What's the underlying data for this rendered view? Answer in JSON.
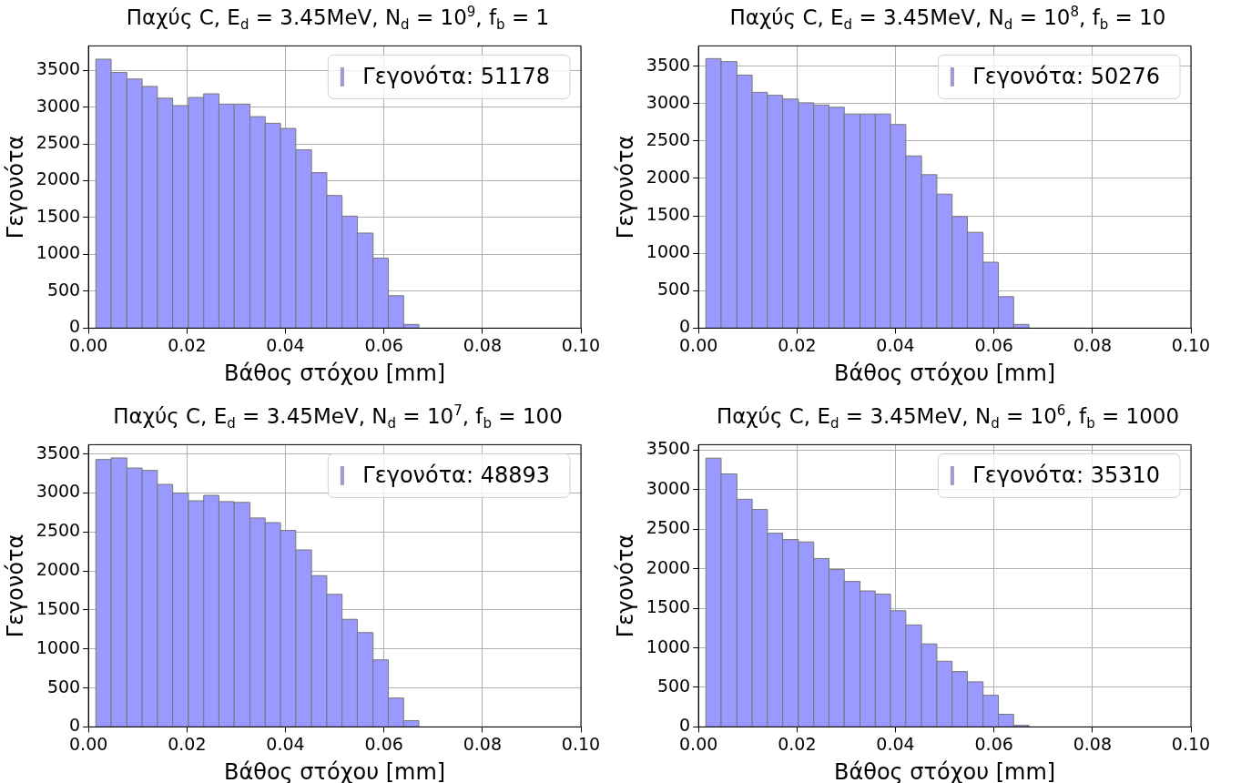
{
  "chart_data": [
    {
      "type": "histogram",
      "title": "Παχύς C, E$_{d}$ = 3.45MeV, N$_{d}$ = 10$^{9}$, f$_{b}$ = 1",
      "xlabel": "Βάθος στόχου [mm]",
      "ylabel": "Γεγονότα",
      "bins": [
        0.0015,
        0.0046,
        0.0078,
        0.0109,
        0.014,
        0.0171,
        0.0203,
        0.0234,
        0.0265,
        0.0296,
        0.0328,
        0.0359,
        0.039,
        0.0421,
        0.0453,
        0.0484,
        0.0515,
        0.0546,
        0.0578,
        0.0609,
        0.064,
        0.0671
      ],
      "series": [
        {
          "name": "Γεγονότα: 51178",
          "color": "#9999ff",
          "values": [
            3650,
            3470,
            3380,
            3280,
            3120,
            3020,
            3130,
            3180,
            3040,
            3040,
            2870,
            2780,
            2710,
            2420,
            2110,
            1800,
            1520,
            1290,
            950,
            440,
            50
          ]
        }
      ],
      "xlim": [
        0,
        0.1
      ],
      "xticks": [
        {
          "value": 0,
          "label": "0.00"
        },
        {
          "value": 0.02,
          "label": "0.02"
        },
        {
          "value": 0.04,
          "label": "0.04"
        },
        {
          "value": 0.06,
          "label": "0.06"
        },
        {
          "value": 0.08,
          "label": "0.08"
        },
        {
          "value": 0.1,
          "label": "0.10"
        }
      ],
      "ylim": [
        0,
        3830
      ],
      "yticks": [
        0,
        500,
        1000,
        1500,
        2000,
        2500,
        3000,
        3500
      ],
      "grid": true,
      "legend": "top right"
    },
    {
      "type": "histogram",
      "title": "Παχύς C, E$_{d}$ = 3.45MeV, N$_{d}$ = 10$^{8}$, f$_{b}$ = 10",
      "xlabel": "Βάθος στόχου [mm]",
      "ylabel": "Γεγονότα",
      "bins": [
        0.0015,
        0.0046,
        0.0078,
        0.0109,
        0.014,
        0.0171,
        0.0203,
        0.0234,
        0.0265,
        0.0296,
        0.0328,
        0.0359,
        0.039,
        0.0421,
        0.0453,
        0.0484,
        0.0515,
        0.0546,
        0.0578,
        0.0609,
        0.064,
        0.0671
      ],
      "series": [
        {
          "name": "Γεγονότα: 50276",
          "color": "#9999ff",
          "values": [
            3600,
            3560,
            3380,
            3150,
            3110,
            3060,
            3010,
            2980,
            2950,
            2860,
            2860,
            2860,
            2720,
            2300,
            2050,
            1790,
            1490,
            1280,
            880,
            420,
            50
          ]
        }
      ],
      "xlim": [
        0,
        0.1
      ],
      "xticks": [
        {
          "value": 0,
          "label": "0.00"
        },
        {
          "value": 0.02,
          "label": "0.02"
        },
        {
          "value": 0.04,
          "label": "0.04"
        },
        {
          "value": 0.06,
          "label": "0.06"
        },
        {
          "value": 0.08,
          "label": "0.08"
        },
        {
          "value": 0.1,
          "label": "0.10"
        }
      ],
      "ylim": [
        0,
        3770
      ],
      "yticks": [
        0,
        500,
        1000,
        1500,
        2000,
        2500,
        3000,
        3500
      ],
      "grid": true,
      "legend": "top right"
    },
    {
      "type": "histogram",
      "title": "Παχύς C, E$_{d}$ = 3.45MeV, N$_{d}$ = 10$^{7}$, f$_{b}$ = 100",
      "xlabel": "Βάθος στόχου [mm]",
      "ylabel": "Γεγονότα",
      "bins": [
        0.0015,
        0.0046,
        0.0078,
        0.0109,
        0.014,
        0.0171,
        0.0203,
        0.0234,
        0.0265,
        0.0296,
        0.0328,
        0.0359,
        0.039,
        0.0421,
        0.0453,
        0.0484,
        0.0515,
        0.0546,
        0.0578,
        0.0609,
        0.064,
        0.0671
      ],
      "series": [
        {
          "name": "Γεγονότα: 48893",
          "color": "#9999ff",
          "values": [
            3430,
            3450,
            3320,
            3290,
            3110,
            3000,
            2900,
            2970,
            2890,
            2880,
            2680,
            2620,
            2520,
            2270,
            1940,
            1700,
            1380,
            1210,
            860,
            370,
            80
          ]
        }
      ],
      "xlim": [
        0,
        0.1
      ],
      "xticks": [
        {
          "value": 0,
          "label": "0.00"
        },
        {
          "value": 0.02,
          "label": "0.02"
        },
        {
          "value": 0.04,
          "label": "0.04"
        },
        {
          "value": 0.06,
          "label": "0.06"
        },
        {
          "value": 0.08,
          "label": "0.08"
        },
        {
          "value": 0.1,
          "label": "0.10"
        }
      ],
      "ylim": [
        0,
        3620
      ],
      "yticks": [
        0,
        500,
        1000,
        1500,
        2000,
        2500,
        3000,
        3500
      ],
      "grid": true,
      "legend": "top right"
    },
    {
      "type": "histogram",
      "title": "Παχύς C, E$_{d}$ = 3.45MeV, N$_{d}$ = 10$^{6}$, f$_{b}$ = 1000",
      "xlabel": "Βάθος στόχου [mm]",
      "ylabel": "Γεγονότα",
      "bins": [
        0.0015,
        0.0046,
        0.0078,
        0.0109,
        0.014,
        0.0171,
        0.0203,
        0.0234,
        0.0265,
        0.0296,
        0.0328,
        0.0359,
        0.039,
        0.0421,
        0.0453,
        0.0484,
        0.0515,
        0.0546,
        0.0578,
        0.0609,
        0.064,
        0.0671
      ],
      "series": [
        {
          "name": "Γεγονότα: 35310",
          "color": "#9999ff",
          "values": [
            3400,
            3200,
            2880,
            2750,
            2450,
            2370,
            2340,
            2130,
            1990,
            1840,
            1720,
            1680,
            1470,
            1290,
            1050,
            830,
            700,
            570,
            400,
            160,
            20
          ]
        }
      ],
      "xlim": [
        0,
        0.1
      ],
      "xticks": [
        {
          "value": 0,
          "label": "0.00"
        },
        {
          "value": 0.02,
          "label": "0.02"
        },
        {
          "value": 0.04,
          "label": "0.04"
        },
        {
          "value": 0.06,
          "label": "0.06"
        },
        {
          "value": 0.08,
          "label": "0.08"
        },
        {
          "value": 0.1,
          "label": "0.10"
        }
      ],
      "ylim": [
        0,
        3570
      ],
      "yticks": [
        0,
        500,
        1000,
        1500,
        2000,
        2500,
        3000,
        3500
      ],
      "grid": true,
      "legend": "top right"
    }
  ]
}
